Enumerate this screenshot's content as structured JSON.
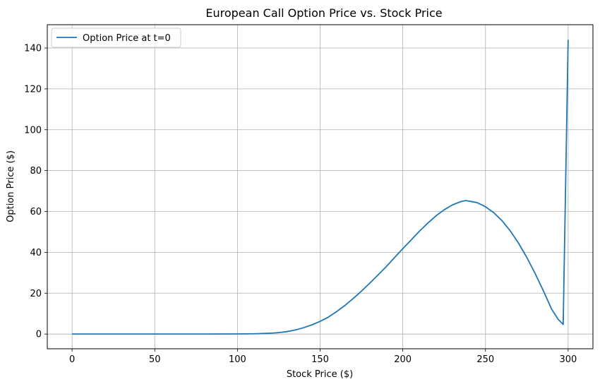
{
  "chart_data": {
    "type": "line",
    "title": "European Call Option Price vs. Stock Price",
    "xlabel": "Stock Price ($)",
    "ylabel": "Option Price ($)",
    "xlim": [
      -15,
      315
    ],
    "ylim": [
      -7.2,
      151.4
    ],
    "xticks": [
      0,
      50,
      100,
      150,
      200,
      250,
      300
    ],
    "yticks": [
      0,
      20,
      40,
      60,
      80,
      100,
      120,
      140
    ],
    "grid": true,
    "legend_position": "top-left",
    "series": [
      {
        "name": "Option Price at t=0",
        "color": "#1f77b4",
        "x": [
          0,
          20,
          40,
          60,
          80,
          100,
          110,
          120,
          125,
          130,
          135,
          140,
          145,
          150,
          155,
          160,
          165,
          170,
          175,
          180,
          185,
          190,
          195,
          200,
          205,
          210,
          215,
          220,
          225,
          230,
          235,
          238,
          240,
          245,
          250,
          255,
          260,
          265,
          270,
          275,
          280,
          285,
          290,
          294,
          297,
          300
        ],
        "y": [
          0,
          0,
          0,
          0,
          0,
          0.05,
          0.15,
          0.4,
          0.7,
          1.2,
          2.0,
          3.1,
          4.5,
          6.2,
          8.3,
          11.0,
          14.0,
          17.4,
          21.0,
          24.9,
          28.9,
          33.0,
          37.4,
          41.8,
          46.0,
          50.3,
          54.2,
          57.8,
          60.8,
          63.2,
          64.8,
          65.3,
          65.1,
          64.3,
          62.3,
          59.4,
          55.5,
          50.5,
          44.5,
          37.5,
          29.7,
          21.2,
          12.2,
          7.2,
          4.7,
          144.0
        ]
      }
    ]
  }
}
